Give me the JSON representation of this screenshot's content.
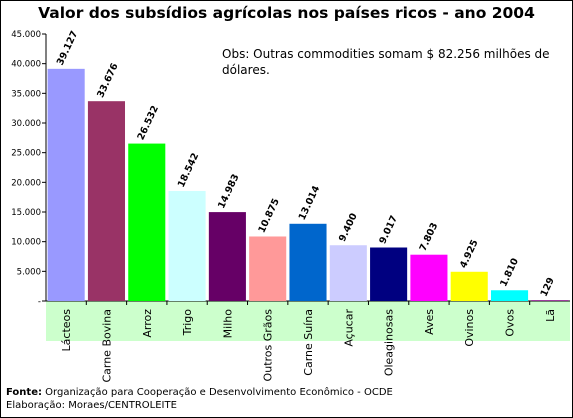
{
  "title": "Valor dos subsídios agrícolas nos países ricos - ano 2004",
  "note": "Obs: Outras commodities somam $ 82.256 milhões de dólares.",
  "footer": {
    "source_label": "Fonte:",
    "source_text": " Organização para Cooperação e Desenvolvimento Econômico - OCDE",
    "credit": "Elaboração: Moraes/CENTROLEITE"
  },
  "chart_data": {
    "type": "bar",
    "title": "Valor dos subsídios agrícolas nos países ricos - ano 2004",
    "xlabel": "",
    "ylabel": "",
    "ylim": [
      0,
      45000
    ],
    "yticks": [
      0,
      5000,
      10000,
      15000,
      20000,
      25000,
      30000,
      35000,
      40000,
      45000
    ],
    "ytick_labels": [
      "-",
      "5.000",
      "10.000",
      "15.000",
      "20.000",
      "25.000",
      "30.000",
      "35.000",
      "40.000",
      "45.000"
    ],
    "grid": false,
    "categories": [
      "Lácteos",
      "Carne Bovina",
      "Arroz",
      "Trigo",
      "Milho",
      "Outros Grãos",
      "Carne Suína",
      "Açucar",
      "Oleaginosas",
      "Aves",
      "Ovinos",
      "Ovos",
      "Lã"
    ],
    "values": [
      39127,
      33676,
      26532,
      18542,
      14983,
      10875,
      13014,
      9400,
      9017,
      7803,
      4925,
      1810,
      129
    ],
    "data_labels": [
      "39.127",
      "33.676",
      "26.532",
      "18.542",
      "14.983",
      "10.875",
      "13.014",
      "9.400",
      "9.017",
      "7.803",
      "4.925",
      "1.810",
      "129"
    ],
    "colors": [
      "#9999ff",
      "#993366",
      "#00ff00",
      "#ccffff",
      "#660066",
      "#ff9999",
      "#0066cc",
      "#ccccff",
      "#000080",
      "#ff00ff",
      "#ffff00",
      "#00ffff",
      "#800080"
    ],
    "plot_background": "#ffffff",
    "band_color": "#ccffcc"
  }
}
